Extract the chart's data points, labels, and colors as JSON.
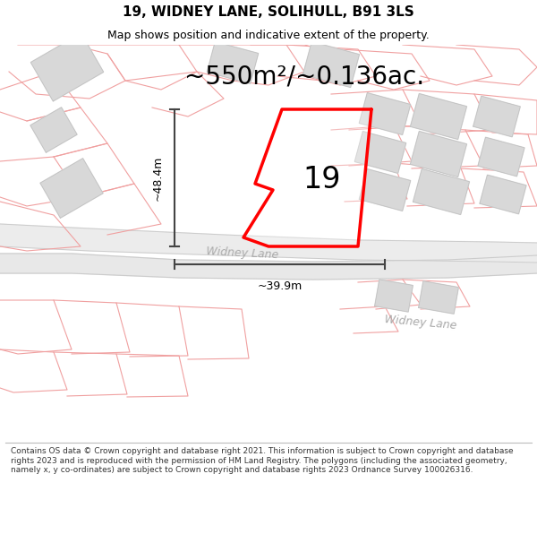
{
  "title_line1": "19, WIDNEY LANE, SOLIHULL, B91 3LS",
  "title_line2": "Map shows position and indicative extent of the property.",
  "area_label": "~550m²/~0.136ac.",
  "property_number": "19",
  "dim_height": "~48.4m",
  "dim_width": "~39.9m",
  "road_label1": "Widney Lane",
  "road_label2": "Widney Lane",
  "footer_text": "Contains OS data © Crown copyright and database right 2021. This information is subject to Crown copyright and database rights 2023 and is reproduced with the permission of HM Land Registry. The polygons (including the associated geometry, namely x, y co-ordinates) are subject to Crown copyright and database rights 2023 Ordnance Survey 100026316.",
  "bg_color": "#ffffff",
  "map_bg": "#ffffff",
  "property_color": "#ff0000",
  "parcel_edge": "#f0a0a0",
  "building_fill": "#d8d8d8",
  "building_edge": "#c0c0c0",
  "road_fill": "#e8e8e8",
  "road_edge": "#cccccc",
  "dim_line_color": "#444444",
  "text_color": "#000000",
  "road_label_color": "#aaaaaa",
  "title_fontsize": 11,
  "subtitle_fontsize": 9,
  "area_fontsize": 20,
  "number_fontsize": 24,
  "dim_fontsize": 9,
  "road_label_fontsize": 9
}
